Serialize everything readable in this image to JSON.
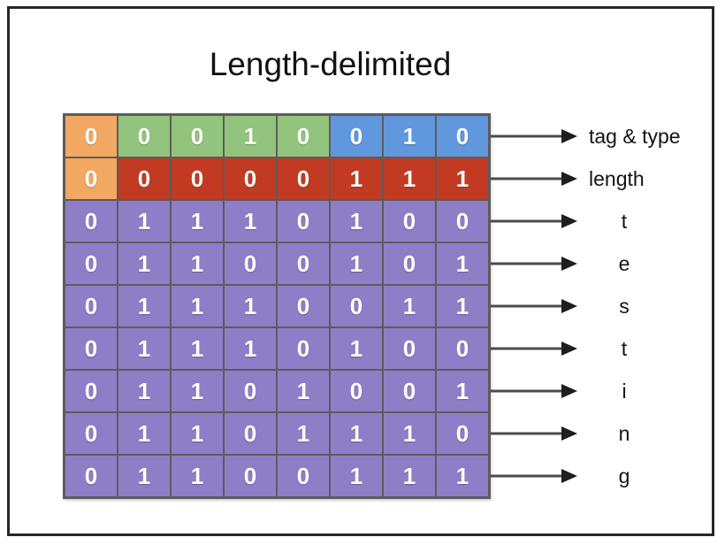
{
  "title": "Length-delimited",
  "palette": {
    "orange": "#F2A862",
    "green": "#93C47D",
    "blue": "#6197DD",
    "red": "#C33A23",
    "purple": "#8D7EC7",
    "grid_border": "#5C5C5C",
    "arrow_line": "#4B4B4B",
    "arrow_head": "#1E1E1E",
    "frame_border": "#272727",
    "bit_text": "#FFFFFF",
    "label_text": "#141414",
    "background": "#FFFFFF"
  },
  "grid": {
    "columns": 8,
    "rows": [
      {
        "label": "tag & type",
        "label_align": "left",
        "bits": [
          0,
          0,
          0,
          1,
          0,
          0,
          1,
          0
        ],
        "cell_colors": [
          "orange",
          "green",
          "green",
          "green",
          "green",
          "blue",
          "blue",
          "blue"
        ]
      },
      {
        "label": "length",
        "label_align": "left",
        "bits": [
          0,
          0,
          0,
          0,
          0,
          1,
          1,
          1
        ],
        "cell_colors": [
          "orange",
          "red",
          "red",
          "red",
          "red",
          "red",
          "red",
          "red"
        ]
      },
      {
        "label": "t",
        "label_align": "center",
        "bits": [
          0,
          1,
          1,
          1,
          0,
          1,
          0,
          0
        ],
        "cell_colors": [
          "purple",
          "purple",
          "purple",
          "purple",
          "purple",
          "purple",
          "purple",
          "purple"
        ]
      },
      {
        "label": "e",
        "label_align": "center",
        "bits": [
          0,
          1,
          1,
          0,
          0,
          1,
          0,
          1
        ],
        "cell_colors": [
          "purple",
          "purple",
          "purple",
          "purple",
          "purple",
          "purple",
          "purple",
          "purple"
        ]
      },
      {
        "label": "s",
        "label_align": "center",
        "bits": [
          0,
          1,
          1,
          1,
          0,
          0,
          1,
          1
        ],
        "cell_colors": [
          "purple",
          "purple",
          "purple",
          "purple",
          "purple",
          "purple",
          "purple",
          "purple"
        ]
      },
      {
        "label": "t",
        "label_align": "center",
        "bits": [
          0,
          1,
          1,
          1,
          0,
          1,
          0,
          0
        ],
        "cell_colors": [
          "purple",
          "purple",
          "purple",
          "purple",
          "purple",
          "purple",
          "purple",
          "purple"
        ]
      },
      {
        "label": "i",
        "label_align": "center",
        "bits": [
          0,
          1,
          1,
          0,
          1,
          0,
          0,
          1
        ],
        "cell_colors": [
          "purple",
          "purple",
          "purple",
          "purple",
          "purple",
          "purple",
          "purple",
          "purple"
        ]
      },
      {
        "label": "n",
        "label_align": "center",
        "bits": [
          0,
          1,
          1,
          0,
          1,
          1,
          1,
          0
        ],
        "cell_colors": [
          "purple",
          "purple",
          "purple",
          "purple",
          "purple",
          "purple",
          "purple",
          "purple"
        ]
      },
      {
        "label": "g",
        "label_align": "center",
        "bits": [
          0,
          1,
          1,
          0,
          0,
          1,
          1,
          1
        ],
        "cell_colors": [
          "purple",
          "purple",
          "purple",
          "purple",
          "purple",
          "purple",
          "purple",
          "purple"
        ]
      }
    ]
  }
}
